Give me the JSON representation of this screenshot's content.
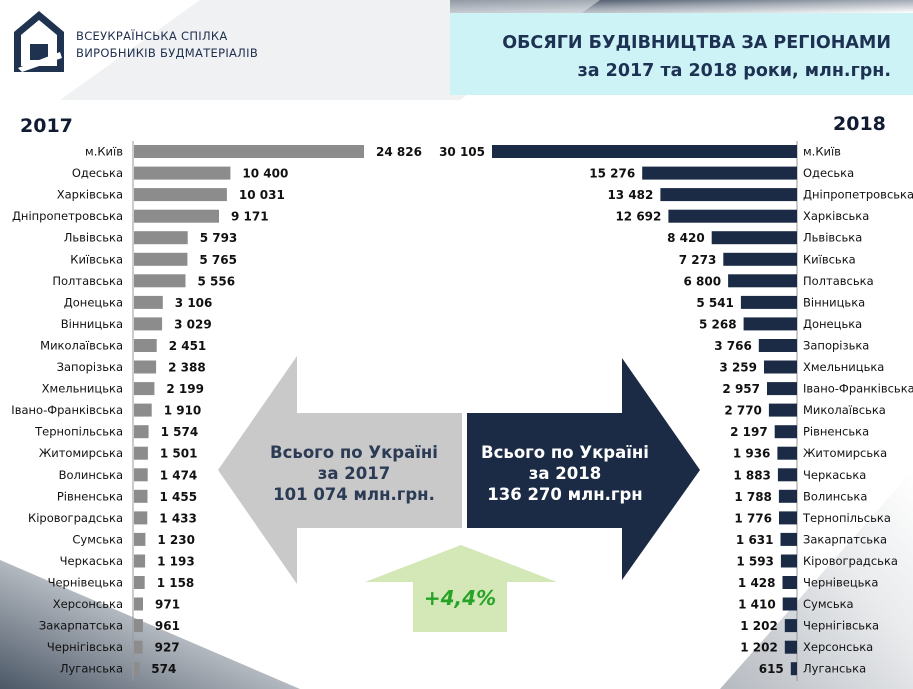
{
  "header": {
    "org_line1": "ВСЕУКРАЇНСЬКА СПІЛКА",
    "org_line2": "ВИРОБНИКІВ БУДМАТЕРІАЛІВ",
    "title_line1": "ОБСЯГИ БУДІВНИЦТВА ЗА РЕГІОНАМИ",
    "title_line2": "за 2017 та 2018 роки, млн.грн."
  },
  "colors": {
    "bar_2017": "#8c8c8c",
    "bar_2018": "#1c2b45",
    "arrow_2017": "#c9c9c9",
    "arrow_2018": "#1c2b45",
    "arrow_growth": "#d3e8b6",
    "title_bg": "#cdf3f7"
  },
  "summary": {
    "left_line1": "Всього по Україні",
    "left_line2": "за 2017",
    "left_line3": "101 074 млн.грн.",
    "right_line1": "Всього по Україні",
    "right_line2": "за 2018",
    "right_line3": "136 270 млн.грн",
    "growth": "+4,4%"
  },
  "chart_data": [
    {
      "type": "bar",
      "orientation": "horizontal",
      "title": "2017",
      "categories": [
        "м.Київ",
        "Одеська",
        "Харківська",
        "Дніпропетровська",
        "Львівська",
        "Київська",
        "Полтавська",
        "Донецька",
        "Вінницька",
        "Миколаївська",
        "Запорізька",
        "Хмельницька",
        "Івано-Франківська",
        "Тернопільська",
        "Житомирська",
        "Волинська",
        "Рівненська",
        "Кіровоградська",
        "Сумська",
        "Черкаська",
        "Чернівецька",
        "Херсонська",
        "Закарпатська",
        "Чернігівська",
        "Луганська"
      ],
      "values": [
        24826,
        10400,
        10031,
        9171,
        5793,
        5765,
        5556,
        3106,
        3029,
        2451,
        2388,
        2199,
        1910,
        1574,
        1501,
        1474,
        1455,
        1433,
        1230,
        1193,
        1158,
        971,
        961,
        927,
        574
      ],
      "labels": [
        "24 826",
        "10 400",
        "10 031",
        "9 171",
        "5 793",
        "5 765",
        "5 556",
        "3 106",
        "3 029",
        "2 451",
        "2 388",
        "2 199",
        "1 910",
        "1 574",
        "1 501",
        "1 474",
        "1 455",
        "1 433",
        "1 230",
        "1 193",
        "1 158",
        "971",
        "961",
        "927",
        "574"
      ]
    },
    {
      "type": "bar",
      "orientation": "horizontal",
      "title": "2018",
      "categories": [
        "м.Київ",
        "Одеська",
        "Дніпропетровська",
        "Харківська",
        "Львівська",
        "Київська",
        "Полтавська",
        "Вінницька",
        "Донецька",
        "Запорізька",
        "Хмельницька",
        "Івано-Франківська",
        "Миколаївська",
        "Рівненська",
        "Житомирська",
        "Черкаська",
        "Волинська",
        "Тернопільська",
        "Закарпатська",
        "Кіровоградська",
        "Чернівецька",
        "Сумська",
        "Чернігівська",
        "Херсонська",
        "Луганська"
      ],
      "values": [
        30105,
        15276,
        13482,
        12692,
        8420,
        7273,
        6800,
        5541,
        5268,
        3766,
        3259,
        2957,
        2770,
        2197,
        1936,
        1883,
        1788,
        1776,
        1631,
        1593,
        1428,
        1410,
        1202,
        1202,
        615
      ],
      "labels": [
        "30 105",
        "15 276",
        "13 482",
        "12 692",
        "8 420",
        "7 273",
        "6 800",
        "5 541",
        "5 268",
        "3 766",
        "3 259",
        "2 957",
        "2 770",
        "2 197",
        "1 936",
        "1 883",
        "1 788",
        "1 776",
        "1 631",
        "1 593",
        "1 428",
        "1 410",
        "1 202",
        "1 202",
        "615"
      ]
    }
  ]
}
